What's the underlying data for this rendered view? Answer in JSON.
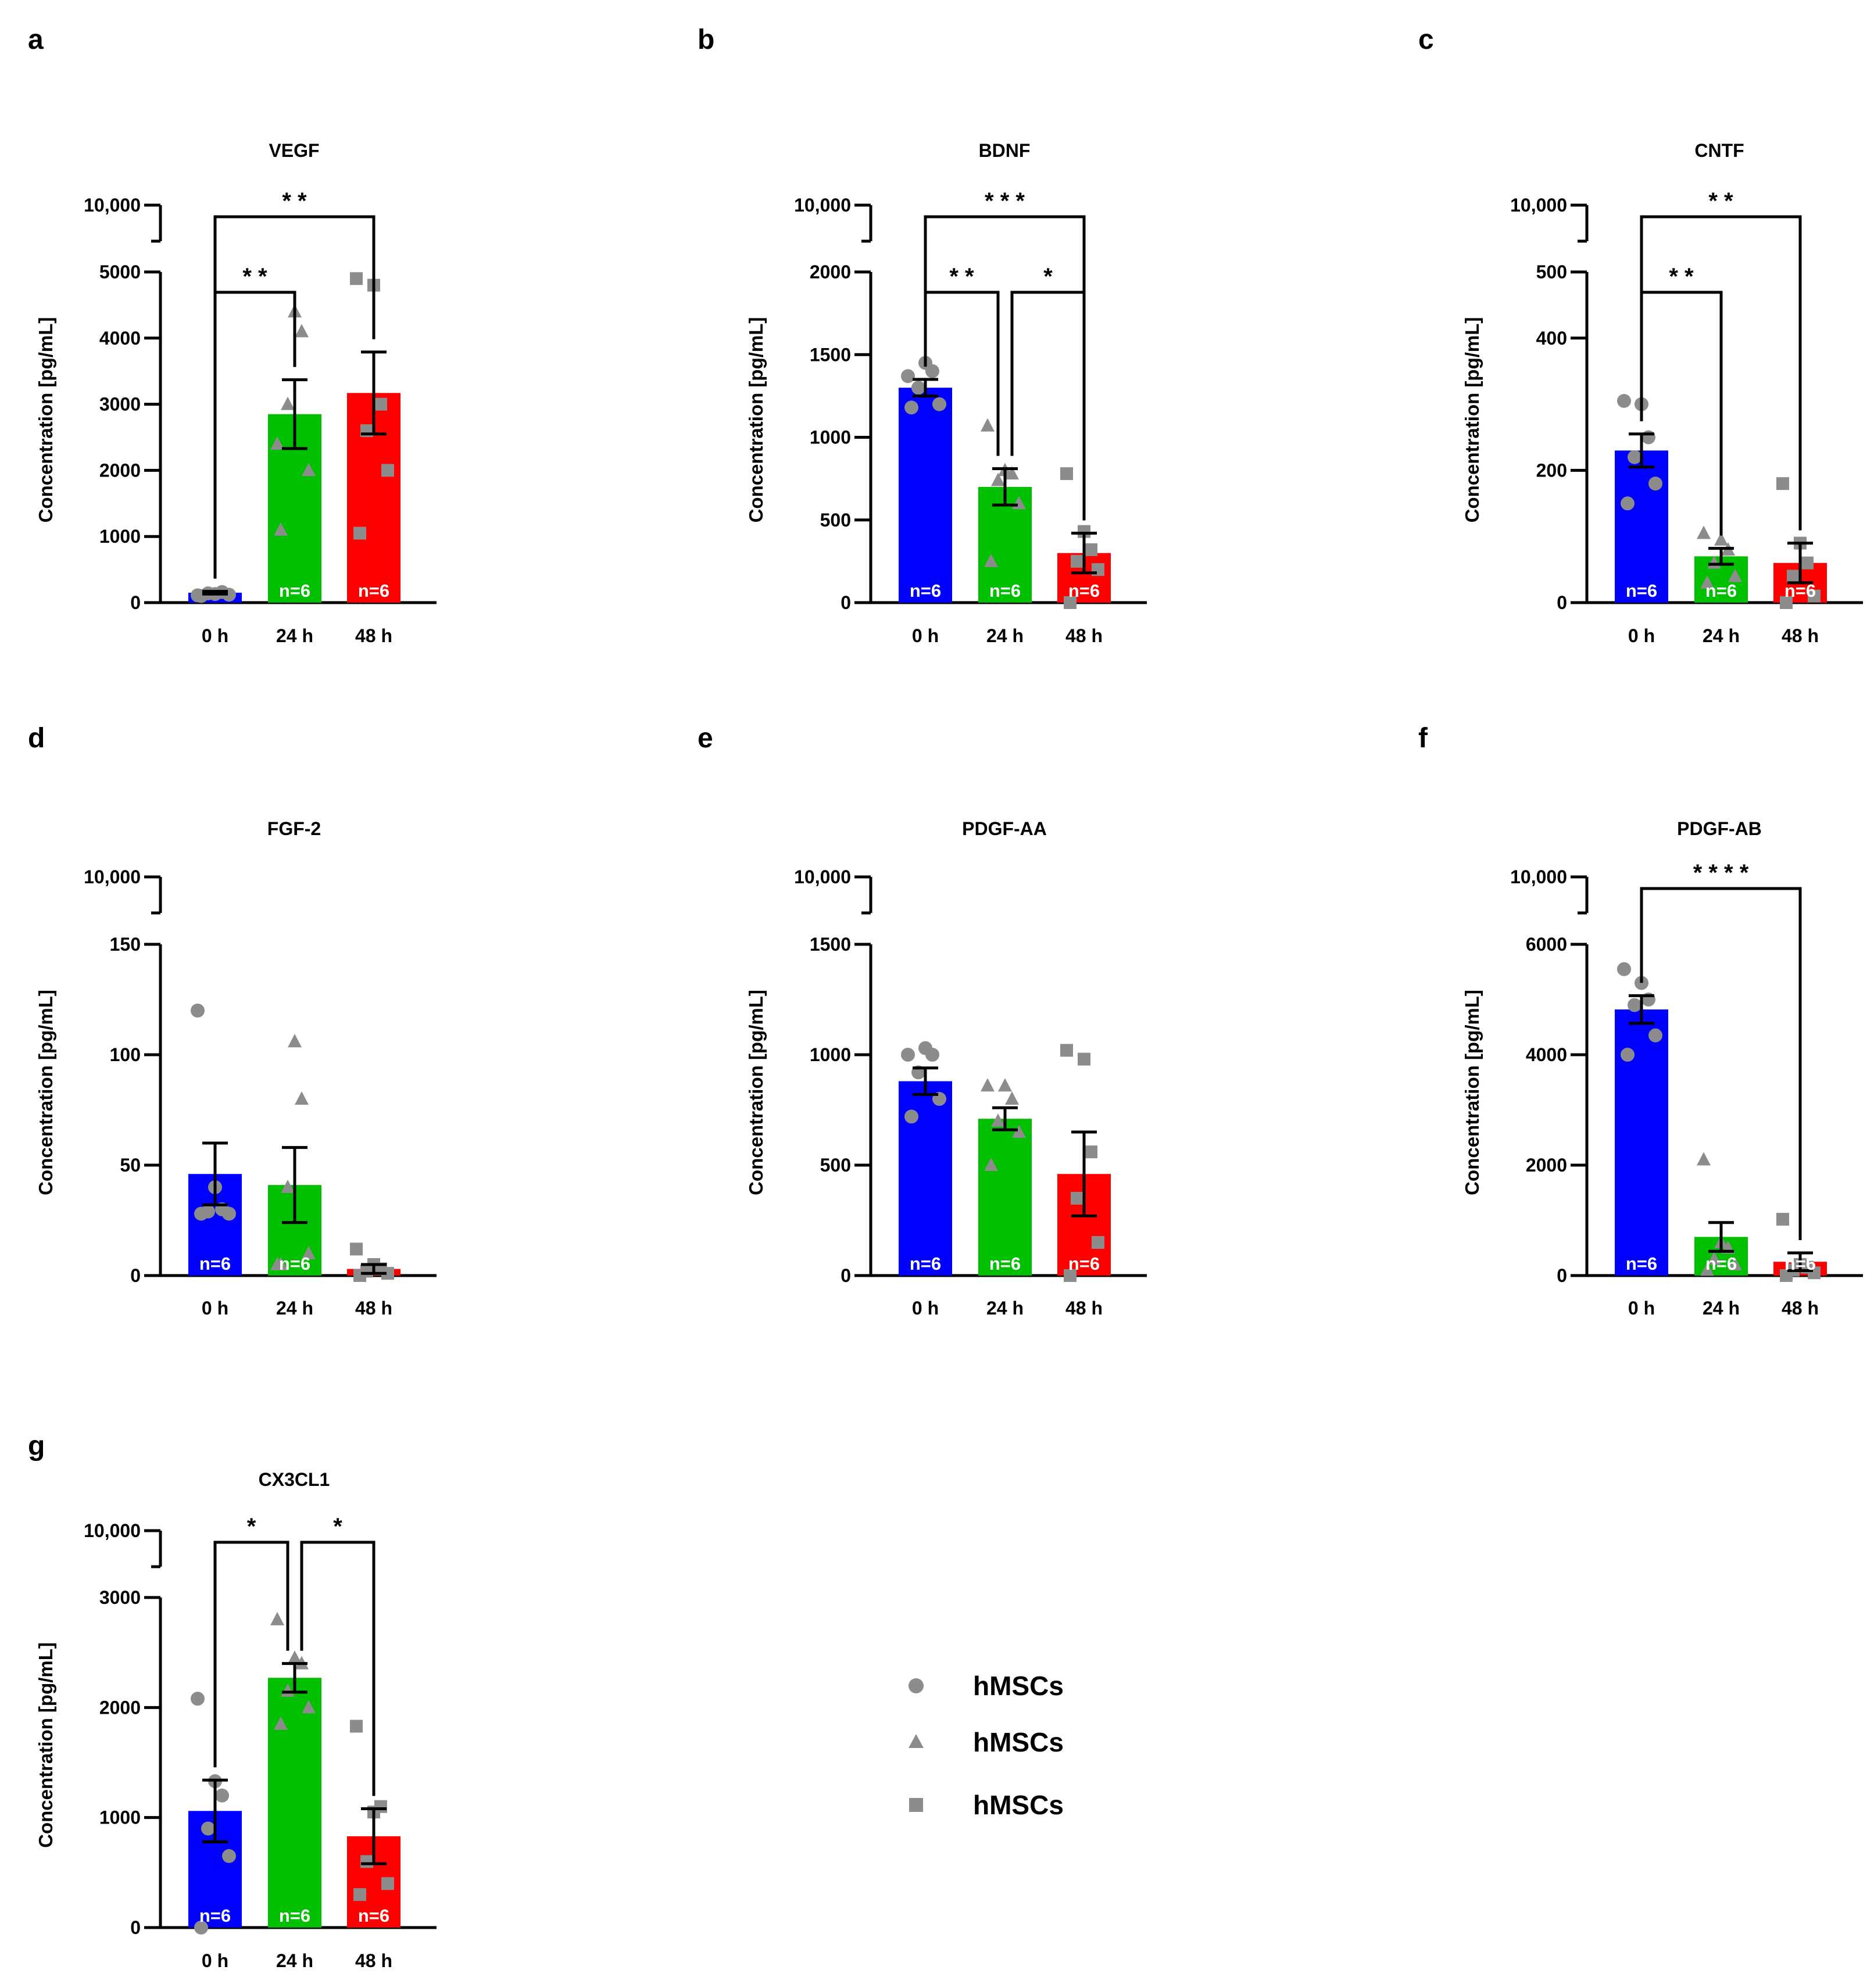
{
  "colors": {
    "bar0": "#0000ff",
    "bar1": "#00c000",
    "bar2": "#ff0000",
    "point": "#8c8c8c",
    "nlabel": "#ffffff",
    "axis": "#000000"
  },
  "legend": [
    {
      "marker": "circle",
      "label": "hMSCs"
    },
    {
      "marker": "triangle",
      "label": "hMSCs"
    },
    {
      "marker": "square",
      "label": "hMSCs"
    }
  ],
  "chart_data": [
    {
      "panel": "a",
      "type": "bar",
      "title": "VEGF",
      "categories": [
        "0 h",
        "24 h",
        "48 h"
      ],
      "ylabel": "Concentration [pg/mL]",
      "ylim": [
        0,
        5000
      ],
      "break_label": "10,000",
      "yticks": [
        0,
        1000,
        2000,
        3000,
        4000,
        5000
      ],
      "ytick_labels": [
        "0",
        "1000",
        "2000",
        "3000",
        "4000",
        "5000"
      ],
      "values": [
        150,
        2850,
        3170
      ],
      "sem": [
        20,
        520,
        620
      ],
      "n_labels": [
        "",
        "n=6",
        "n=6"
      ],
      "points": [
        [
          100,
          120,
          140,
          160,
          130,
          110
        ],
        [
          1100,
          2000,
          3000,
          4100,
          4400,
          2400
        ],
        [
          1050,
          2000,
          2600,
          3000,
          4800,
          4900
        ]
      ],
      "significance": [
        {
          "from": 0,
          "to": 1,
          "label": "* *"
        },
        {
          "from": 0,
          "to": 2,
          "label": "* *"
        }
      ]
    },
    {
      "panel": "b",
      "type": "bar",
      "title": "BDNF",
      "categories": [
        "0 h",
        "24 h",
        "48 h"
      ],
      "ylabel": "Concentration [pg/mL]",
      "ylim": [
        0,
        2000
      ],
      "break_label": "10,000",
      "yticks": [
        0,
        500,
        1000,
        1500,
        2000
      ],
      "ytick_labels": [
        "0",
        "500",
        "1000",
        "1500",
        "2000"
      ],
      "values": [
        1300,
        700,
        300
      ],
      "sem": [
        50,
        110,
        120
      ],
      "n_labels": [
        "n=6",
        "n=6",
        "n=6"
      ],
      "points": [
        [
          1180,
          1200,
          1300,
          1400,
          1450,
          1370
        ],
        [
          250,
          600,
          740,
          780,
          800,
          1070
        ],
        [
          0,
          200,
          250,
          320,
          430,
          780
        ]
      ],
      "significance": [
        {
          "from": 0,
          "to": 1,
          "label": "* *"
        },
        {
          "from": 1,
          "to": 2,
          "label": "*"
        },
        {
          "from": 0,
          "to": 2,
          "label": "* * *"
        }
      ]
    },
    {
      "panel": "c",
      "type": "bar",
      "title": "CNTF",
      "categories": [
        "0 h",
        "24 h",
        "48 h"
      ],
      "ylabel": "Concentration [pg/mL]",
      "ylim": [
        0,
        500
      ],
      "break_label": "10,000",
      "yticks": [
        0,
        200,
        400,
        500
      ],
      "ytick_labels": [
        "0",
        "200",
        "400",
        "500"
      ],
      "values": [
        230,
        70,
        60
      ],
      "sem": [
        25,
        12,
        30
      ],
      "n_labels": [
        "n=6",
        "n=6",
        "n=6"
      ],
      "points": [
        [
          150,
          180,
          220,
          250,
          300,
          305
        ],
        [
          30,
          40,
          60,
          80,
          95,
          105
        ],
        [
          0,
          10,
          40,
          60,
          90,
          180
        ]
      ],
      "significance": [
        {
          "from": 0,
          "to": 1,
          "label": "* *"
        },
        {
          "from": 0,
          "to": 2,
          "label": "* *"
        }
      ]
    },
    {
      "panel": "d",
      "type": "bar",
      "title": "FGF-2",
      "categories": [
        "0 h",
        "24 h",
        "48 h"
      ],
      "ylabel": "Concentration [pg/mL]",
      "ylim": [
        0,
        150
      ],
      "break_label": "10,000",
      "yticks": [
        0,
        50,
        100,
        150
      ],
      "ytick_labels": [
        "0",
        "50",
        "100",
        "150"
      ],
      "values": [
        46,
        41,
        3
      ],
      "sem": [
        14,
        17,
        2
      ],
      "n_labels": [
        "n=6",
        "n=6",
        ""
      ],
      "points": [
        [
          28,
          28,
          29,
          30,
          40,
          120
        ],
        [
          5,
          10,
          40,
          80,
          106,
          5
        ],
        [
          0,
          1,
          2,
          3,
          5,
          12
        ]
      ],
      "significance": []
    },
    {
      "panel": "e",
      "type": "bar",
      "title": "PDGF-AA",
      "categories": [
        "0 h",
        "24 h",
        "48 h"
      ],
      "ylabel": "Concentration [pg/mL]",
      "ylim": [
        0,
        1500
      ],
      "break_label": "10,000",
      "yticks": [
        0,
        500,
        1000,
        1500
      ],
      "ytick_labels": [
        "0",
        "500",
        "1000",
        "1500"
      ],
      "values": [
        880,
        710,
        460
      ],
      "sem": [
        60,
        50,
        190
      ],
      "n_labels": [
        "n=6",
        "n=6",
        "n=6"
      ],
      "points": [
        [
          720,
          800,
          920,
          1000,
          1030,
          1000
        ],
        [
          500,
          650,
          700,
          800,
          860,
          860
        ],
        [
          0,
          150,
          350,
          560,
          980,
          1020
        ]
      ],
      "significance": []
    },
    {
      "panel": "f",
      "type": "bar",
      "title": "PDGF-AB",
      "categories": [
        "0 h",
        "24 h",
        "48 h"
      ],
      "ylabel": "Concentration [pg/mL]",
      "ylim": [
        0,
        6000
      ],
      "break_label": "10,000",
      "yticks": [
        0,
        2000,
        4000,
        6000
      ],
      "ytick_labels": [
        "0",
        "2000",
        "4000",
        "6000"
      ],
      "values": [
        4820,
        700,
        250
      ],
      "sem": [
        250,
        260,
        160
      ],
      "n_labels": [
        "n=6",
        "n=6",
        "n=6"
      ],
      "points": [
        [
          4000,
          4350,
          4900,
          5000,
          5300,
          5550
        ],
        [
          100,
          200,
          300,
          500,
          600,
          2100
        ],
        [
          0,
          50,
          100,
          150,
          200,
          1020
        ]
      ],
      "significance": [
        {
          "from": 0,
          "to": 2,
          "label": "* * * *"
        }
      ]
    },
    {
      "panel": "g",
      "type": "bar",
      "title": "CX3CL1",
      "categories": [
        "0 h",
        "24 h",
        "48 h"
      ],
      "ylabel": "Concentration [pg/mL]",
      "ylim": [
        0,
        3000
      ],
      "break_label": "10,000",
      "yticks": [
        0,
        1000,
        2000,
        3000
      ],
      "ytick_labels": [
        "0",
        "1000",
        "2000",
        "3000"
      ],
      "values": [
        1060,
        2270,
        830
      ],
      "sem": [
        280,
        130,
        250
      ],
      "n_labels": [
        "n=6",
        "n=6",
        "n=6"
      ],
      "points": [
        [
          0,
          650,
          900,
          1200,
          1330,
          2080
        ],
        [
          1850,
          2000,
          2150,
          2400,
          2450,
          2800
        ],
        [
          300,
          400,
          600,
          1100,
          1050,
          1830
        ]
      ],
      "significance": [
        {
          "from": 0,
          "to": 1,
          "label": "*"
        },
        {
          "from": 1,
          "to": 2,
          "label": "*"
        }
      ]
    }
  ]
}
